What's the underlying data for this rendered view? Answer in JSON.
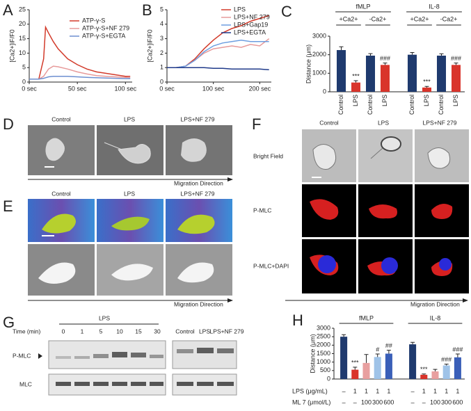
{
  "panel_labels": [
    "A",
    "B",
    "C",
    "D",
    "E",
    "F",
    "G",
    "H"
  ],
  "chart_data": [
    {
      "type": "line",
      "ylabel": "[Ca2+]iF/F0",
      "xlim": [
        0,
        107
      ],
      "xticks": [
        {
          "value": 0,
          "label": "0 sec"
        },
        {
          "value": 50,
          "label": "50 sec"
        },
        {
          "value": 100,
          "label": "100 sec"
        }
      ],
      "ylim": [
        0,
        25
      ],
      "yticks": [
        0,
        5,
        10,
        15,
        20,
        25
      ],
      "x": [
        0,
        5,
        10,
        15,
        17,
        20,
        25,
        30,
        40,
        50,
        60,
        70,
        80,
        90,
        100,
        105
      ],
      "series": [
        {
          "name": "ATP-γ-S",
          "color": "#d23a2a",
          "values": [
            1,
            1,
            1,
            8,
            19,
            17,
            14,
            11.5,
            8,
            6,
            4.5,
            3.5,
            3,
            2.5,
            2,
            2
          ]
        },
        {
          "name": "ATP-γ-S+NF 279",
          "color": "#e79a9a",
          "values": [
            1,
            1,
            1,
            2,
            3,
            4.5,
            5.5,
            5.3,
            4.5,
            3.5,
            2.8,
            2.2,
            2,
            1.8,
            1.6,
            1.5
          ]
        },
        {
          "name": "ATP-γ-S+EGTA",
          "color": "#6d8fd0",
          "values": [
            1,
            1,
            1,
            1.3,
            1.5,
            1.8,
            2,
            2,
            2,
            1.8,
            1.6,
            1.5,
            1.4,
            1.3,
            1.2,
            1.2
          ]
        }
      ]
    },
    {
      "type": "line",
      "ylabel": "[Ca2+]iF/F0",
      "xlim": [
        0,
        225
      ],
      "xticks": [
        {
          "value": 0,
          "label": "0 sec"
        },
        {
          "value": 100,
          "label": "100 sec"
        },
        {
          "value": 200,
          "label": "200 sec"
        }
      ],
      "ylim": [
        0,
        5
      ],
      "yticks": [
        0,
        1,
        2,
        3,
        4,
        5
      ],
      "x": [
        0,
        20,
        40,
        60,
        80,
        100,
        120,
        140,
        160,
        180,
        200,
        220
      ],
      "series": [
        {
          "name": "LPS",
          "color": "#d23a2a",
          "values": [
            1,
            1,
            1.1,
            1.6,
            2.3,
            2.9,
            3.4,
            3.7,
            3.9,
            4.2,
            4.4,
            4.6
          ]
        },
        {
          "name": "LPS+NF 279",
          "color": "#e79a9a",
          "values": [
            1,
            1,
            1.1,
            1.5,
            2,
            2.3,
            2.4,
            2.5,
            2.4,
            2.6,
            2.5,
            3
          ]
        },
        {
          "name": "LPS+Gap19",
          "color": "#6d9ee0",
          "values": [
            1,
            1,
            1.1,
            1.5,
            2.1,
            2.5,
            2.7,
            2.8,
            2.9,
            2.8,
            2.8,
            2.8
          ]
        },
        {
          "name": "LPS+EGTA",
          "color": "#1f3a8a",
          "values": [
            1,
            1,
            1,
            1,
            1,
            0.95,
            0.95,
            0.9,
            0.9,
            0.9,
            0.9,
            0.85
          ]
        }
      ]
    },
    {
      "type": "bar",
      "ylabel": "Distance (μm)",
      "ylim": [
        0,
        3000
      ],
      "yticks": [
        0,
        1000,
        2000,
        3000
      ],
      "groups": [
        {
          "label": "fMLP",
          "subgroups": [
            "+Ca2+",
            "-Ca2+"
          ]
        },
        {
          "label": "IL-8",
          "subgroups": [
            "+Ca2+",
            "-Ca2+"
          ]
        }
      ],
      "categories": [
        "Control",
        "LPS",
        "Control",
        "LPS",
        "Control",
        "LPS",
        "Control",
        "LPS"
      ],
      "values": [
        2250,
        500,
        1950,
        1450,
        2000,
        230,
        1950,
        1450
      ],
      "errors": [
        180,
        100,
        110,
        100,
        120,
        60,
        100,
        100
      ],
      "colors": [
        "#1f3a6e",
        "#d9342b",
        "#1f3a6e",
        "#d9342b",
        "#1f3a6e",
        "#d9342b",
        "#1f3a6e",
        "#d9342b"
      ],
      "annotations": [
        null,
        "***",
        null,
        "###",
        null,
        "***",
        null,
        "###"
      ]
    },
    {
      "type": "bar",
      "ylabel": "Distance (μm)",
      "ylim": [
        0,
        3000
      ],
      "yticks": [
        0,
        500,
        1000,
        1500,
        2000,
        2500,
        3000
      ],
      "groups": [
        {
          "label": "fMLP"
        },
        {
          "label": "IL-8"
        }
      ],
      "categories": [
        null,
        null,
        null,
        null,
        null,
        null,
        null,
        null,
        null,
        null
      ],
      "values": [
        2500,
        550,
        950,
        1300,
        1500,
        2050,
        250,
        450,
        800,
        1280
      ],
      "errors": [
        120,
        150,
        500,
        180,
        200,
        120,
        50,
        120,
        80,
        200
      ],
      "colors": [
        "#1f3a6e",
        "#d9342b",
        "#e8a0a0",
        "#9fc3e8",
        "#3a5fb8",
        "#1f3a6e",
        "#d9342b",
        "#e8a0a0",
        "#9fc3e8",
        "#3a5fb8"
      ],
      "annotations": [
        null,
        "***",
        null,
        "#",
        "##",
        null,
        "***",
        null,
        "###",
        "###"
      ],
      "rows": [
        {
          "label": "LPS (μg/mL)",
          "values": [
            "–",
            "1",
            "1",
            "1",
            "1",
            "–",
            "1",
            "1",
            "1",
            "1"
          ]
        },
        {
          "label": "ML 7 (μmol/L)",
          "values": [
            "–",
            "–",
            "100",
            "300",
            "600",
            "–",
            "–",
            "100",
            "300",
            "600"
          ]
        }
      ]
    }
  ],
  "panel_D": {
    "columns": [
      "Control",
      "LPS",
      "LPS+NF 279"
    ],
    "arrow": "Migration Direction"
  },
  "panel_E": {
    "columns": [
      "Control",
      "LPS",
      "LPS+NF 279"
    ],
    "arrow": "Migration Direction"
  },
  "panel_F": {
    "columns": [
      "Control",
      "LPS",
      "LPS+NF 279"
    ],
    "rows": [
      "Bright Field",
      "P-MLC",
      "P-MLC+DAPI"
    ],
    "arrow": "Migration Direction"
  },
  "panel_G": {
    "treatment": "LPS",
    "time_label": "Time (min)",
    "times": [
      "0",
      "1",
      "5",
      "10",
      "15",
      "30"
    ],
    "columns": [
      "Control",
      "LPS",
      "LPS+NF 279"
    ],
    "rows": [
      "P-MLC",
      "MLC"
    ]
  }
}
